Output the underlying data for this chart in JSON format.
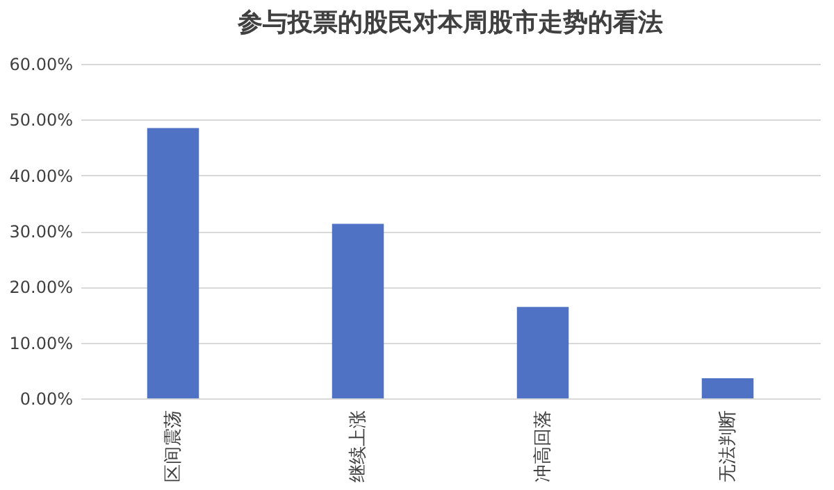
{
  "chart_data": {
    "type": "bar",
    "title": "参与投票的股民对本周股市走势的看法",
    "categories": [
      "区间震荡",
      "继续上涨",
      "冲高回落",
      "无法判断"
    ],
    "values": [
      48.5,
      31.3,
      16.4,
      3.6
    ],
    "color": "#4f72c4",
    "ylim": [
      0,
      60
    ],
    "yticks": [
      {
        "value": 0,
        "label": "0.00%"
      },
      {
        "value": 10,
        "label": "10.00%"
      },
      {
        "value": 20,
        "label": "20.00%"
      },
      {
        "value": 30,
        "label": "30.00%"
      },
      {
        "value": 40,
        "label": "40.00%"
      },
      {
        "value": 50,
        "label": "50.00%"
      },
      {
        "value": 60,
        "label": "60.00%"
      }
    ],
    "grid": "y"
  }
}
